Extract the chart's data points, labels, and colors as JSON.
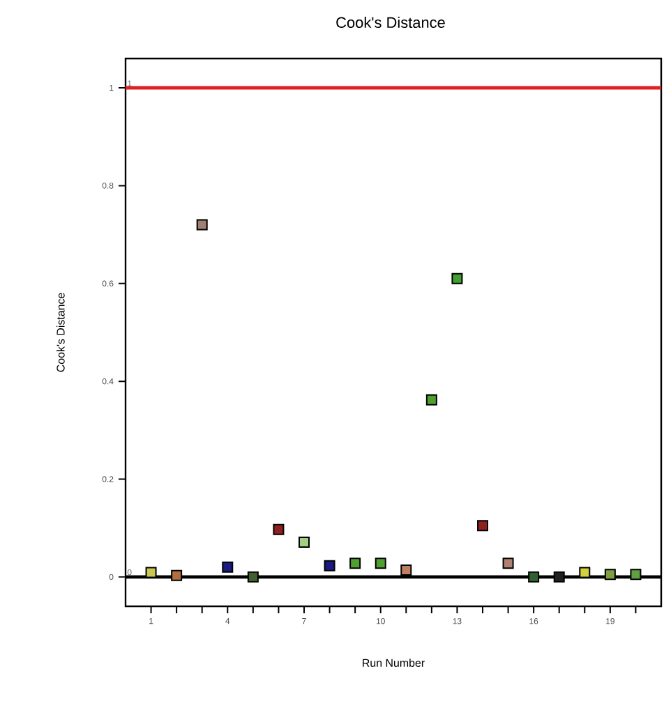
{
  "chart_data": {
    "type": "scatter",
    "title": "Cook's Distance",
    "xlabel": "Run Number",
    "ylabel": "Cook's Distance",
    "x": [
      1,
      2,
      3,
      4,
      5,
      6,
      7,
      8,
      9,
      10,
      11,
      12,
      13,
      14,
      15,
      16,
      17,
      18,
      19,
      20
    ],
    "values": [
      0.009,
      0.003,
      0.72,
      0.02,
      0.0,
      0.097,
      0.071,
      0.023,
      0.028,
      0.028,
      0.014,
      0.362,
      0.61,
      0.105,
      0.028,
      0.0,
      0.0,
      0.009,
      0.005,
      0.005
    ],
    "colors": [
      "#c8c850",
      "#b07040",
      "#a08070",
      "#1a1a80",
      "#406030",
      "#902020",
      "#a0d080",
      "#1a1a80",
      "#50a030",
      "#50a030",
      "#c08060",
      "#50a030",
      "#40a030",
      "#902020",
      "#b08070",
      "#306030",
      "#202020",
      "#d0d040",
      "#80a040",
      "#60a040"
    ],
    "marker": "square",
    "grid": false,
    "xlim": [
      0,
      21
    ],
    "ylim": [
      -0.06,
      1.06
    ],
    "xticks": [
      1,
      {
        "value": 2,
        "label": null
      },
      {
        "value": 3,
        "label": null
      },
      4,
      {
        "value": 5,
        "label": null
      },
      {
        "value": 6,
        "label": null
      },
      7,
      {
        "value": 8,
        "label": null
      },
      {
        "value": 9,
        "label": null
      },
      10,
      {
        "value": 11,
        "label": null
      },
      {
        "value": 12,
        "label": null
      },
      13,
      {
        "value": 14,
        "label": null
      },
      {
        "value": 15,
        "label": null
      },
      16,
      {
        "value": 17,
        "label": null
      },
      {
        "value": 18,
        "label": null
      },
      19,
      {
        "value": 20,
        "label": null
      }
    ],
    "yticks": [
      0,
      0.2,
      0.4,
      0.6,
      0.8,
      1
    ],
    "ref_lines": [
      {
        "axis": "y",
        "value": 1,
        "label": "1",
        "color": "#e02020"
      },
      {
        "axis": "y",
        "value": 0,
        "label": "0",
        "color": "#000000"
      }
    ]
  }
}
